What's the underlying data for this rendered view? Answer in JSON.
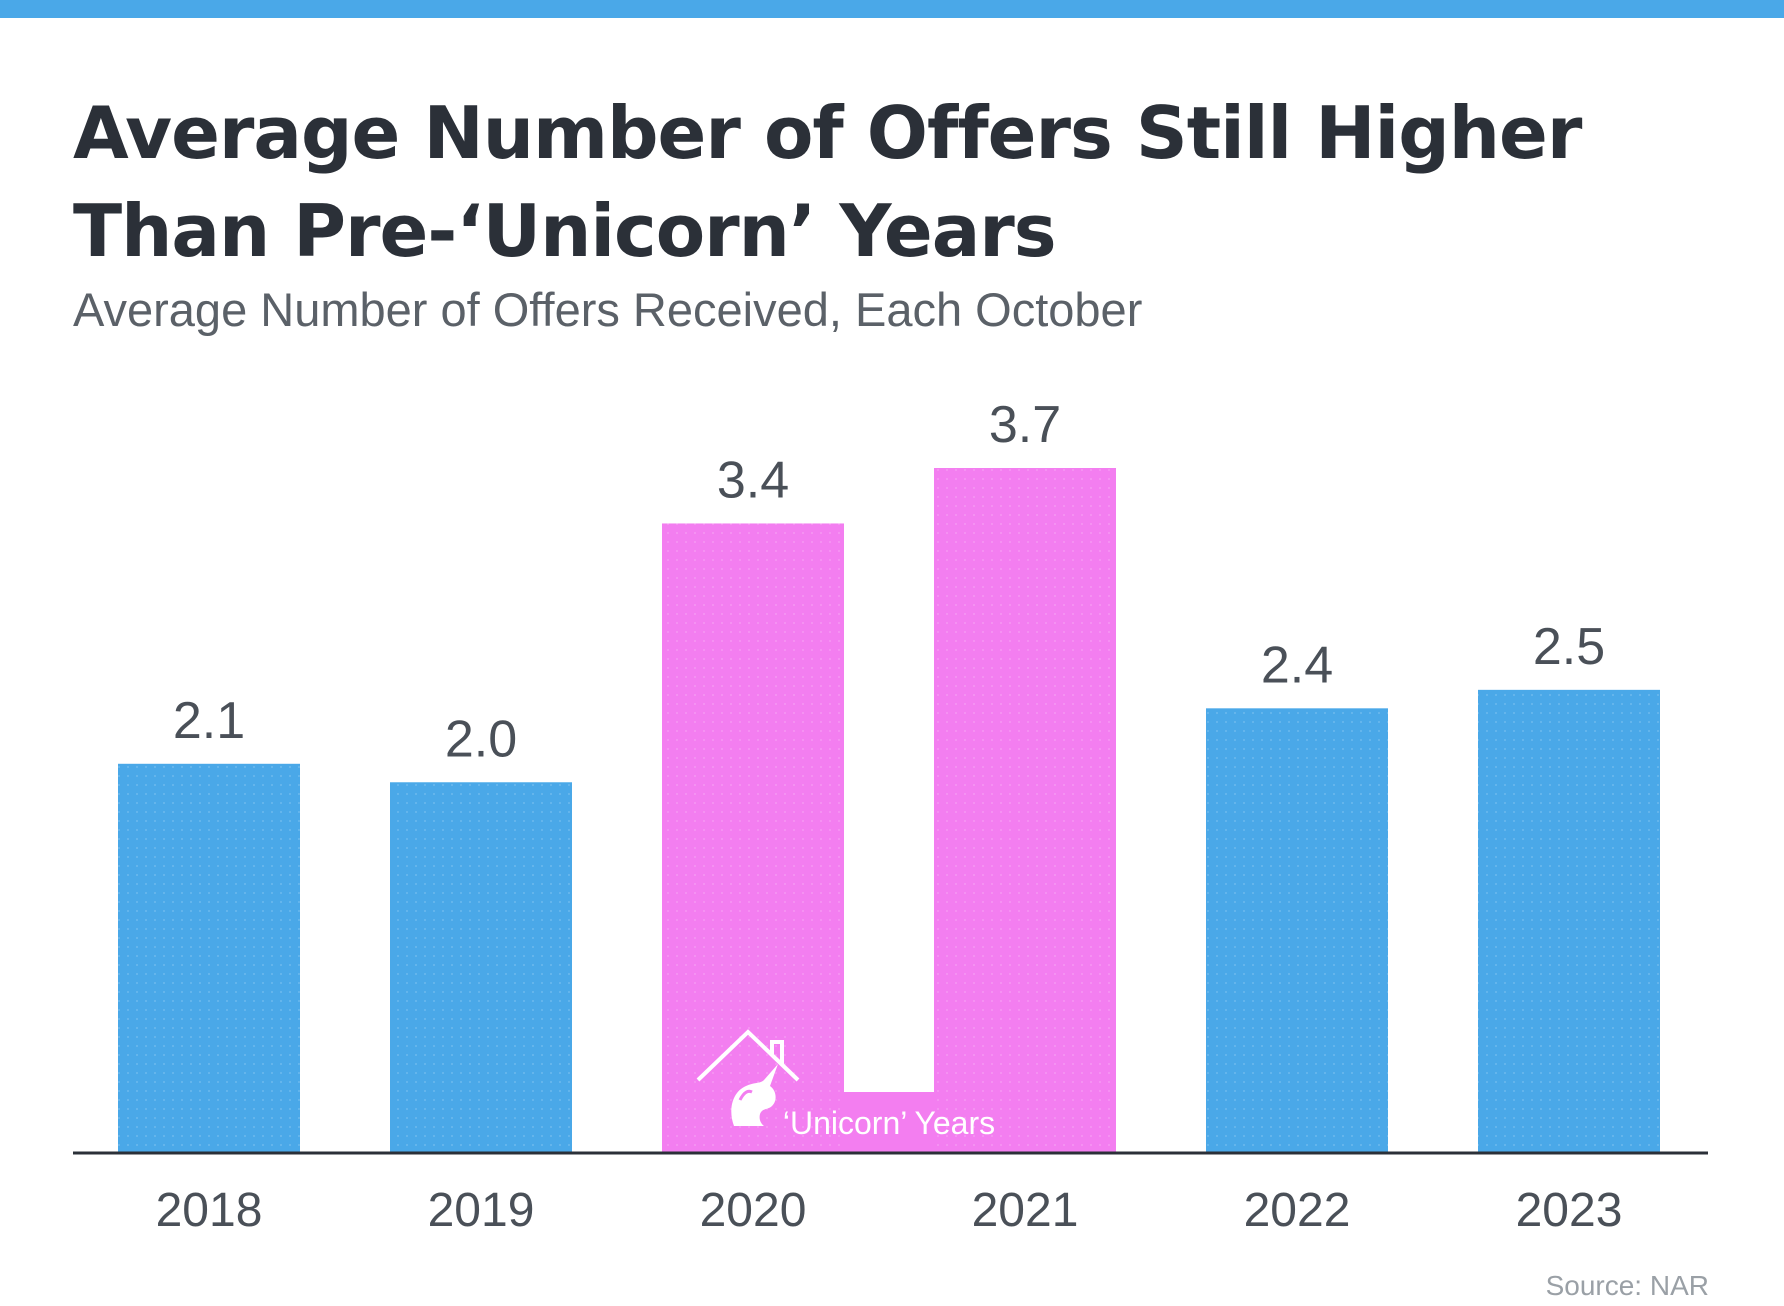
{
  "header": {
    "title": "Average Number of Offers Still Higher Than Pre-‘Unicorn’ Years",
    "subtitle": "Average Number of Offers Received, Each October",
    "source": "Source: NAR"
  },
  "colors": {
    "accent": "#4aa8e8",
    "normal_bar": "#4aa8e8",
    "highlight_bar": "#f37ef0",
    "axis": "#2b3038",
    "text": "#4a5058"
  },
  "chart_data": {
    "type": "bar",
    "categories": [
      "2018",
      "2019",
      "2020",
      "2021",
      "2022",
      "2023"
    ],
    "values": [
      2.1,
      2.0,
      3.4,
      3.7,
      2.4,
      2.5
    ],
    "value_labels": [
      "2.1",
      "2.0",
      "3.4",
      "3.7",
      "2.4",
      "2.5"
    ],
    "highlighted": [
      "2020",
      "2021"
    ],
    "title": "Average Number of Offers Still Higher Than Pre-‘Unicorn’ Years",
    "subtitle": "Average Number of Offers Received, Each October",
    "xlabel": "",
    "ylabel": "",
    "ylim": [
      0,
      3.7
    ],
    "grid": false,
    "legend": "none",
    "annotation": {
      "text": "‘Unicorn’ Years",
      "icon": "unicorn-house-icon",
      "spans": [
        "2020",
        "2021"
      ]
    }
  }
}
